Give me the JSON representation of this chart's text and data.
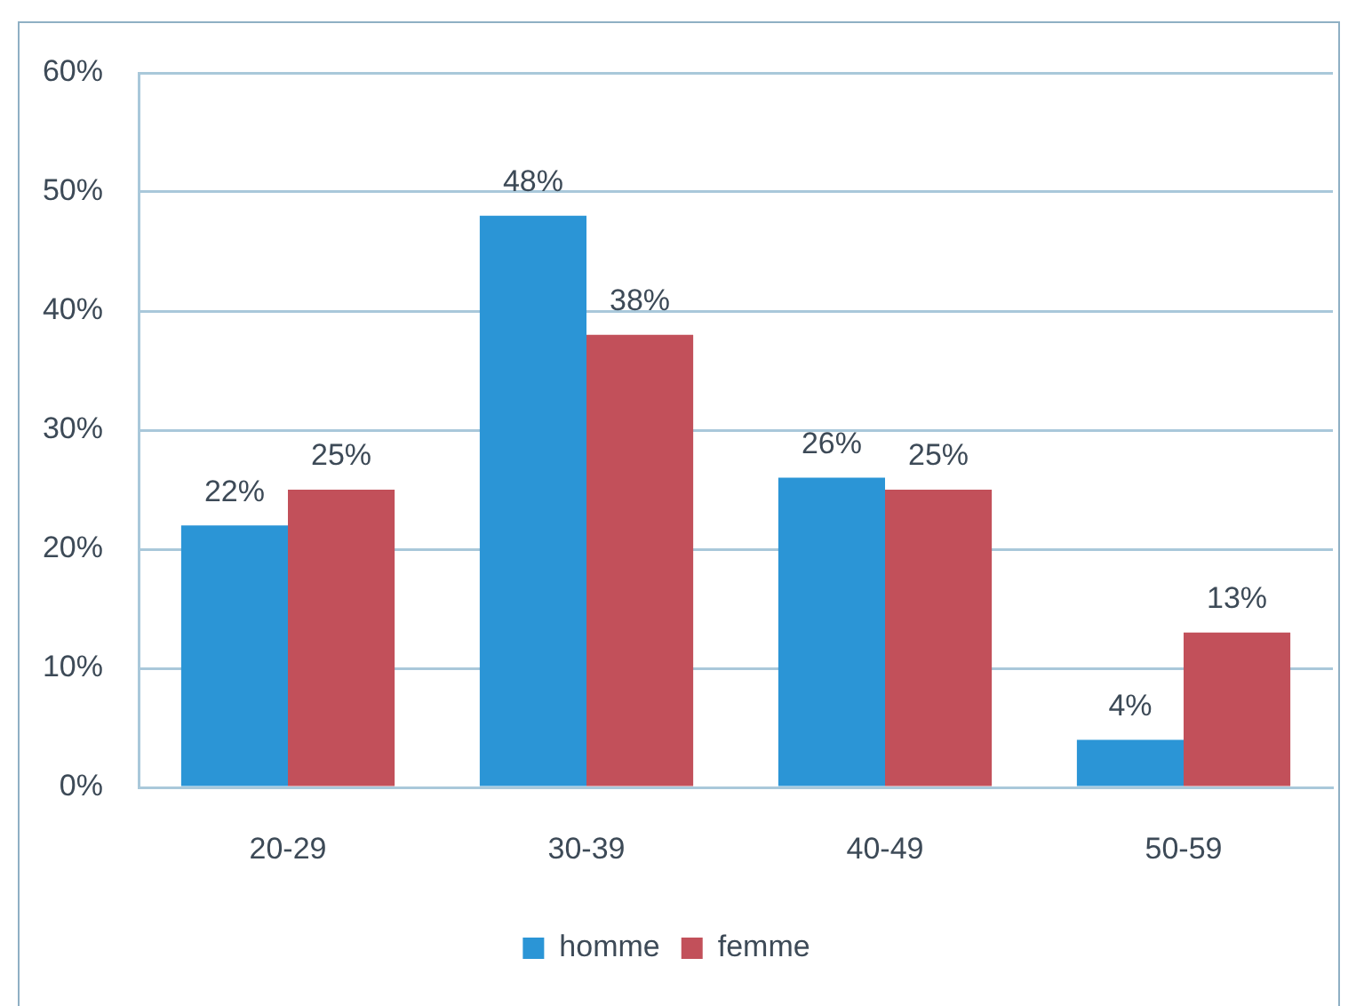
{
  "chart_data": {
    "type": "bar",
    "categories": [
      "20-29",
      "30-39",
      "40-49",
      "50-59"
    ],
    "series": [
      {
        "name": "homme",
        "color": "#2b95d6",
        "values": [
          22,
          48,
          26,
          4
        ],
        "value_labels": [
          "22%",
          "48%",
          "26%",
          "4%"
        ]
      },
      {
        "name": "femme",
        "color": "#c2505a",
        "values": [
          25,
          38,
          25,
          13
        ],
        "value_labels": [
          "25%",
          "38%",
          "25%",
          "13%"
        ]
      }
    ],
    "ylim": [
      0,
      60
    ],
    "yticks": [
      {
        "value": 0,
        "label": "0%"
      },
      {
        "value": 10,
        "label": "10%"
      },
      {
        "value": 20,
        "label": "20%"
      },
      {
        "value": 30,
        "label": "30%"
      },
      {
        "value": 40,
        "label": "40%"
      },
      {
        "value": 50,
        "label": "50%"
      },
      {
        "value": 60,
        "label": "60%"
      }
    ],
    "grid": "y",
    "legend": "bottom"
  }
}
